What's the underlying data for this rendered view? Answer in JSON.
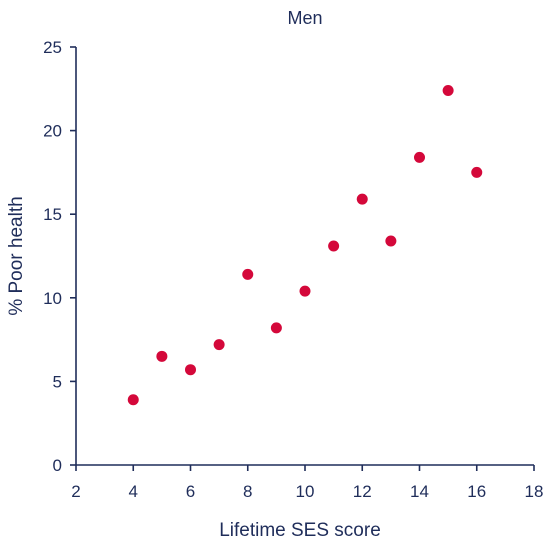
{
  "chart_data": {
    "type": "scatter",
    "title": "Men",
    "xlabel": "Lifetime SES score",
    "ylabel": "% Poor health",
    "xlim": [
      2,
      18
    ],
    "ylim": [
      0,
      25
    ],
    "xticks": [
      2,
      4,
      6,
      8,
      10,
      12,
      14,
      16,
      18
    ],
    "yticks": [
      0,
      5,
      10,
      15,
      20,
      25
    ],
    "grid": false,
    "legend": "none",
    "colors": {
      "point": "#d4083a",
      "axis": "#1f2d5a",
      "text": "#1f2d5a"
    },
    "series": [
      {
        "x": [
          4,
          5,
          6,
          7,
          8,
          9,
          10,
          11,
          12,
          13,
          14,
          15,
          16
        ],
        "y": [
          3.9,
          6.5,
          5.7,
          7.2,
          11.4,
          8.2,
          10.4,
          13.1,
          15.9,
          13.4,
          18.4,
          22.4,
          17.5
        ]
      }
    ]
  }
}
